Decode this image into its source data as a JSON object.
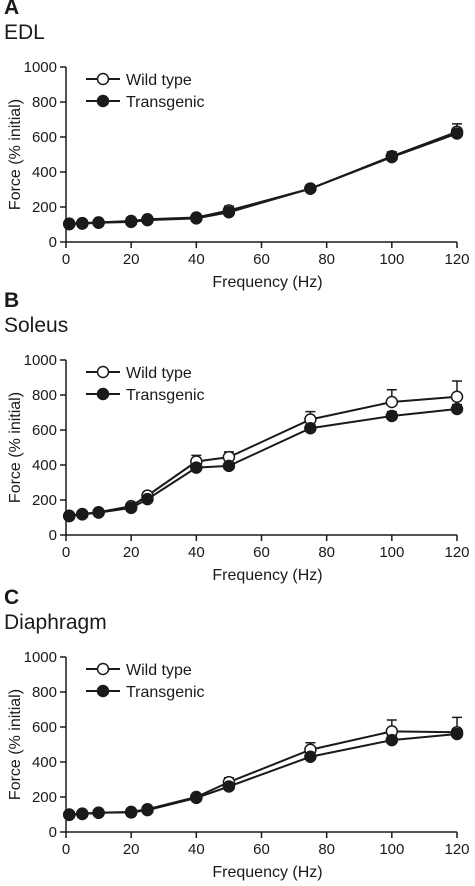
{
  "panels": [
    {
      "letter": "A",
      "muscle": "EDL",
      "chart_data": {
        "type": "line",
        "xlabel": "Frequency (Hz)",
        "ylabel": "Force (% initial)",
        "xlim": [
          0,
          120
        ],
        "ylim": [
          0,
          1000
        ],
        "xticks": [
          0,
          20,
          40,
          60,
          80,
          100,
          120
        ],
        "yticks": [
          0,
          200,
          400,
          600,
          800,
          1000
        ],
        "x": [
          1,
          5,
          10,
          20,
          25,
          40,
          50,
          75,
          100,
          120
        ],
        "legend_position": "top-left",
        "grid": false,
        "series": [
          {
            "name": "Wild type",
            "marker": "open-circle",
            "values": [
              105,
              108,
              112,
              120,
              130,
              140,
              180,
              305,
              490,
              630
            ],
            "errors": [
              8,
              8,
              10,
              12,
              12,
              18,
              25,
              20,
              25,
              45
            ]
          },
          {
            "name": "Transgenic",
            "marker": "filled-circle",
            "values": [
              102,
              105,
              110,
              115,
              125,
              135,
              170,
              305,
              485,
              620
            ],
            "errors": [
              6,
              6,
              8,
              25,
              10,
              20,
              15,
              18,
              20,
              30
            ]
          }
        ]
      }
    },
    {
      "letter": "B",
      "muscle": "Soleus",
      "chart_data": {
        "type": "line",
        "xlabel": "Frequency (Hz)",
        "ylabel": "Force (% initial)",
        "xlim": [
          0,
          120
        ],
        "ylim": [
          0,
          1000
        ],
        "xticks": [
          0,
          20,
          40,
          60,
          80,
          100,
          120
        ],
        "yticks": [
          0,
          200,
          400,
          600,
          800,
          1000
        ],
        "x": [
          1,
          5,
          10,
          20,
          25,
          40,
          50,
          75,
          100,
          120
        ],
        "legend_position": "top-left",
        "grid": false,
        "series": [
          {
            "name": "Wild type",
            "marker": "open-circle",
            "values": [
              110,
              120,
              130,
              165,
              225,
              420,
              445,
              660,
              760,
              790
            ],
            "errors": [
              8,
              8,
              10,
              15,
              20,
              35,
              30,
              45,
              70,
              90
            ]
          },
          {
            "name": "Transgenic",
            "marker": "filled-circle",
            "values": [
              108,
              118,
              128,
              155,
              205,
              385,
              395,
              610,
              680,
              720
            ],
            "errors": [
              6,
              6,
              8,
              10,
              15,
              20,
              20,
              20,
              25,
              25
            ]
          }
        ]
      }
    },
    {
      "letter": "C",
      "muscle": "Diaphragm",
      "chart_data": {
        "type": "line",
        "xlabel": "Frequency (Hz)",
        "ylabel": "Force (% initial)",
        "xlim": [
          0,
          120
        ],
        "ylim": [
          0,
          1000
        ],
        "xticks": [
          0,
          20,
          40,
          60,
          80,
          100,
          120
        ],
        "yticks": [
          0,
          200,
          400,
          600,
          800,
          1000
        ],
        "x": [
          1,
          5,
          10,
          20,
          25,
          40,
          50,
          75,
          100,
          120
        ],
        "legend_position": "top-left",
        "grid": false,
        "series": [
          {
            "name": "Wild type",
            "marker": "open-circle",
            "values": [
              100,
              105,
              110,
              115,
              130,
              200,
              285,
              470,
              575,
              570
            ],
            "errors": [
              8,
              8,
              8,
              10,
              12,
              15,
              25,
              40,
              65,
              85
            ]
          },
          {
            "name": "Transgenic",
            "marker": "filled-circle",
            "values": [
              98,
              103,
              110,
              112,
              125,
              195,
              260,
              430,
              525,
              560
            ],
            "errors": [
              6,
              6,
              6,
              8,
              10,
              12,
              15,
              20,
              25,
              30
            ]
          }
        ]
      }
    }
  ]
}
